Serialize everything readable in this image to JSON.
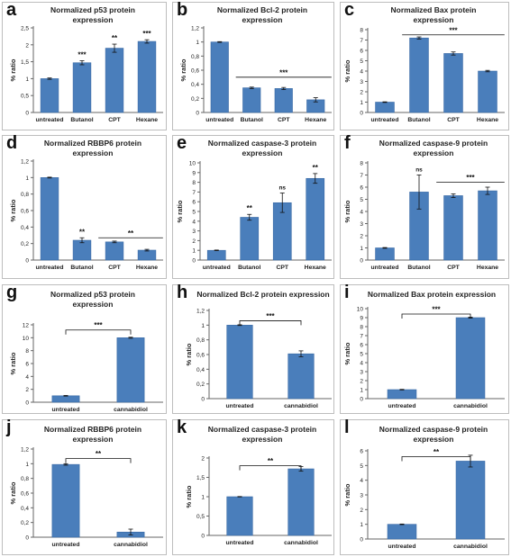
{
  "colors": {
    "bar": "#4a7ebb",
    "bar_edge": "#3a6aa5",
    "axis": "#666666",
    "text": "#222222"
  },
  "chart_data": [
    {
      "panel": "a",
      "title_lines": [
        "Normalized p53 protein",
        "expression"
      ],
      "type": "bar",
      "categories": [
        "untreated",
        "Butanol",
        "CPT",
        "Hexane"
      ],
      "values": [
        1,
        1.47,
        1.9,
        2.1
      ],
      "errors": [
        0.02,
        0.06,
        0.12,
        0.05
      ],
      "ylim": [
        0,
        2.5
      ],
      "yticks": [
        "0",
        "0,5",
        "1",
        "1,5",
        "2",
        "2,5"
      ],
      "ylabel": "% ratio",
      "sig_marks": [
        null,
        "***",
        "**",
        "***"
      ],
      "brackets": []
    },
    {
      "panel": "b",
      "title_lines": [
        "Normalized Bcl-2 protein",
        "expression"
      ],
      "type": "bar",
      "categories": [
        "untreated",
        "Butanol",
        "CPT",
        "Hexane"
      ],
      "values": [
        1,
        0.35,
        0.34,
        0.18
      ],
      "errors": [
        0.005,
        0.01,
        0.015,
        0.03
      ],
      "ylim": [
        0,
        1.2
      ],
      "yticks": [
        "0",
        "0,2",
        "0,4",
        "0,6",
        "0,8",
        "1",
        "1,2"
      ],
      "ylabel": "% ratio",
      "sig_marks": [
        null,
        null,
        null,
        null
      ],
      "brackets": [
        {
          "from": 1,
          "to": 3,
          "y": 0.5,
          "label": "***",
          "style": "line"
        }
      ]
    },
    {
      "panel": "c",
      "title_lines": [
        "Normalized Bax protein",
        "expression"
      ],
      "type": "bar",
      "categories": [
        "untreated",
        "Butanol",
        "CPT",
        "Hexane"
      ],
      "values": [
        1,
        7.2,
        5.7,
        4.0
      ],
      "errors": [
        0.03,
        0.1,
        0.15,
        0.07
      ],
      "ylim": [
        0,
        8
      ],
      "yticks": [
        "0",
        "1",
        "2",
        "3",
        "4",
        "5",
        "6",
        "7",
        "8"
      ],
      "ylabel": "% ratio",
      "sig_marks": [
        null,
        null,
        null,
        null
      ],
      "brackets": [
        {
          "from": 1,
          "to": 3,
          "y": 7.5,
          "label": "***",
          "style": "line"
        }
      ]
    },
    {
      "panel": "d",
      "title_lines": [
        "Normalized RBBP6 protein",
        "expression"
      ],
      "type": "bar",
      "categories": [
        "untreated",
        "Butanol",
        "CPT",
        "Hexane"
      ],
      "values": [
        1,
        0.24,
        0.22,
        0.12
      ],
      "errors": [
        0.005,
        0.03,
        0.01,
        0.01
      ],
      "ylim": [
        0,
        1.2
      ],
      "yticks": [
        "0",
        "0,2",
        "0,4",
        "0,6",
        "0,8",
        "1",
        "1,2"
      ],
      "ylabel": "% ratio",
      "sig_marks": [
        null,
        "**",
        null,
        null
      ],
      "brackets": [
        {
          "from": 2,
          "to": 3,
          "y": 0.27,
          "label": "**",
          "style": "line"
        }
      ]
    },
    {
      "panel": "e",
      "title_lines": [
        "Normalized caspase-3 protein",
        "expression"
      ],
      "type": "bar",
      "categories": [
        "untreated",
        "Butanol",
        "CPT",
        "Hexane"
      ],
      "values": [
        1,
        4.4,
        5.9,
        8.4
      ],
      "errors": [
        0.03,
        0.3,
        1.0,
        0.5
      ],
      "ylim": [
        0,
        10
      ],
      "yticks": [
        "0",
        "1",
        "2",
        "3",
        "4",
        "5",
        "6",
        "7",
        "8",
        "9",
        "10"
      ],
      "ylabel": "% ratio",
      "sig_marks": [
        null,
        "**",
        "ns",
        "**"
      ],
      "brackets": []
    },
    {
      "panel": "f",
      "title_lines": [
        "Normalized caspase-9 protein",
        "expression"
      ],
      "type": "bar",
      "categories": [
        "untreated",
        "Butanol",
        "CPT",
        "Hexane"
      ],
      "values": [
        1,
        5.6,
        5.3,
        5.7
      ],
      "errors": [
        0.03,
        1.4,
        0.15,
        0.3
      ],
      "ylim": [
        0,
        8
      ],
      "yticks": [
        "0",
        "1",
        "2",
        "3",
        "4",
        "5",
        "6",
        "7",
        "8"
      ],
      "ylabel": "% ratio",
      "sig_marks": [
        null,
        "ns",
        null,
        null
      ],
      "brackets": [
        {
          "from": 2,
          "to": 3,
          "y": 6.4,
          "label": "***",
          "style": "line"
        }
      ]
    },
    {
      "panel": "g",
      "title_lines": [
        "Normalized p53 protein",
        "expression"
      ],
      "type": "bar",
      "categories": [
        "untreated",
        "cannabidiol"
      ],
      "values": [
        1,
        10
      ],
      "errors": [
        0.05,
        0.08
      ],
      "ylim": [
        0,
        12
      ],
      "yticks": [
        "0",
        "2",
        "4",
        "6",
        "8",
        "10",
        "12"
      ],
      "ylabel": "% ratio",
      "sig_marks": [
        null,
        null
      ],
      "brackets": [
        {
          "from": 0,
          "to": 1,
          "y": 11.2,
          "label": "***",
          "style": "bracket"
        }
      ]
    },
    {
      "panel": "h",
      "title_lines": [
        "Normalized Bcl-2 protein expression"
      ],
      "type": "bar",
      "categories": [
        "untreated",
        "cannabidiol"
      ],
      "values": [
        1,
        0.61
      ],
      "errors": [
        0.005,
        0.04
      ],
      "ylim": [
        0,
        1.2
      ],
      "yticks": [
        "0",
        "0,2",
        "0,4",
        "0,6",
        "0,8",
        "1",
        "1,2"
      ],
      "ylabel": "% ratio",
      "sig_marks": [
        null,
        null
      ],
      "brackets": [
        {
          "from": 0,
          "to": 1,
          "y": 1.06,
          "label": "***",
          "style": "bracket"
        }
      ]
    },
    {
      "panel": "i",
      "title_lines": [
        "Normalized Bax protein expression"
      ],
      "type": "bar",
      "categories": [
        "untreated",
        "cannabidiol"
      ],
      "values": [
        1,
        9
      ],
      "errors": [
        0.03,
        0.06
      ],
      "ylim": [
        0,
        10
      ],
      "yticks": [
        "0",
        "1",
        "2",
        "3",
        "4",
        "5",
        "6",
        "7",
        "8",
        "9",
        "10"
      ],
      "ylabel": "% ratio",
      "sig_marks": [
        null,
        null
      ],
      "brackets": [
        {
          "from": 0,
          "to": 1,
          "y": 9.4,
          "label": "***",
          "style": "bracket"
        }
      ]
    },
    {
      "panel": "j",
      "title_lines": [
        "Normalized RBBP6 protein",
        "expression"
      ],
      "type": "bar",
      "categories": [
        "untreated",
        "cannabidiol"
      ],
      "values": [
        0.99,
        0.07
      ],
      "errors": [
        0.01,
        0.04
      ],
      "ylim": [
        0,
        1.2
      ],
      "yticks": [
        "0",
        "0,2",
        "0,4",
        "0,6",
        "0,8",
        "1",
        "1,2"
      ],
      "ylabel": "% ratio",
      "sig_marks": [
        null,
        null
      ],
      "brackets": [
        {
          "from": 0,
          "to": 1,
          "y": 1.07,
          "label": "**",
          "style": "bracket"
        }
      ]
    },
    {
      "panel": "k",
      "title_lines": [
        "Normalized caspase-3 protein",
        "expression"
      ],
      "type": "bar",
      "categories": [
        "untreated",
        "cannabidiol"
      ],
      "values": [
        1,
        1.72
      ],
      "errors": [
        0.005,
        0.06
      ],
      "ylim": [
        0,
        2
      ],
      "yticks": [
        "0",
        "0,5",
        "1",
        "1,5",
        "2"
      ],
      "ylabel": "% ratio",
      "sig_marks": [
        null,
        null
      ],
      "brackets": [
        {
          "from": 0,
          "to": 1,
          "y": 1.8,
          "label": "**",
          "style": "bracket"
        }
      ]
    },
    {
      "panel": "l",
      "title_lines": [
        "Normalized caspase-9 protein",
        "expression"
      ],
      "type": "bar",
      "categories": [
        "untreated",
        "cannabidiol"
      ],
      "values": [
        1,
        5.3
      ],
      "errors": [
        0.02,
        0.4
      ],
      "ylim": [
        0,
        6
      ],
      "yticks": [
        "0",
        "1",
        "2",
        "3",
        "4",
        "5",
        "6"
      ],
      "ylabel": "% ratio",
      "sig_marks": [
        null,
        null
      ],
      "brackets": [
        {
          "from": 0,
          "to": 1,
          "y": 5.6,
          "label": "**",
          "style": "bracket"
        }
      ]
    }
  ]
}
